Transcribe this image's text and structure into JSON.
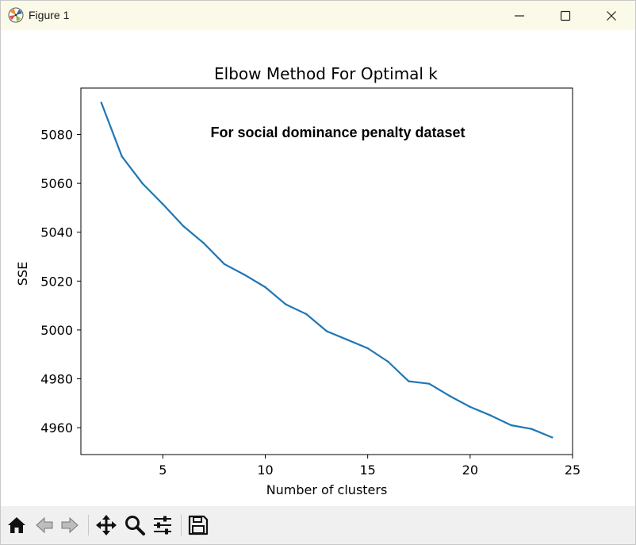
{
  "window": {
    "title": "Figure 1",
    "controls": [
      "minimize",
      "maximize",
      "close"
    ]
  },
  "toolbar": {
    "items": [
      {
        "name": "home-icon",
        "label": "Home"
      },
      {
        "name": "back-icon",
        "label": "Back"
      },
      {
        "name": "forward-icon",
        "label": "Forward"
      },
      {
        "name": "pan-icon",
        "label": "Pan"
      },
      {
        "name": "zoom-icon",
        "label": "Zoom"
      },
      {
        "name": "configure-subplots-icon",
        "label": "Configure subplots"
      },
      {
        "name": "save-icon",
        "label": "Save"
      }
    ]
  },
  "chart_data": {
    "type": "line",
    "title": "Elbow Method For Optimal k",
    "xlabel": "Number of clusters",
    "ylabel": "SSE",
    "annotation": "For social dominance penalty dataset",
    "xlim": [
      1,
      25
    ],
    "ylim": [
      4949,
      5099
    ],
    "xticks": [
      5,
      10,
      15,
      20,
      25
    ],
    "yticks": [
      4960,
      4980,
      5000,
      5020,
      5040,
      5060,
      5080
    ],
    "grid": false,
    "line_color": "#1f77b4",
    "series": [
      {
        "x": [
          2,
          3,
          4,
          5,
          6,
          7,
          8,
          9,
          10,
          11,
          12,
          13,
          14,
          15,
          16,
          17,
          18,
          19,
          20,
          21,
          22,
          23,
          24
        ],
        "values": [
          5093,
          5071,
          5060,
          5051.5,
          5042.5,
          5035.5,
          5027,
          5022.5,
          5017.5,
          5010.5,
          5006.5,
          4999.5,
          4996,
          4992.5,
          4987,
          4979,
          4978,
          4973,
          4968.5,
          4965,
          4961,
          4959.5,
          4956
        ]
      }
    ]
  }
}
